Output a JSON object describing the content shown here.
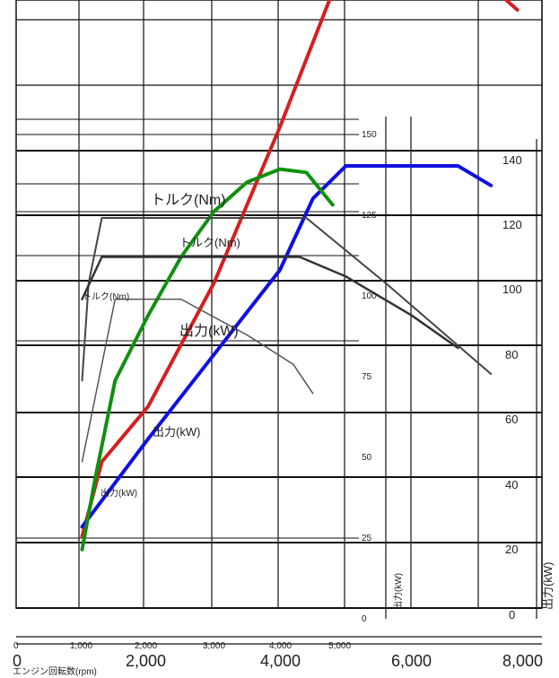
{
  "chart_data": {
    "type": "line",
    "title": "",
    "xlabel": "エンジン回転数(rpm)",
    "x_ticks_large": [
      "0",
      "2,000",
      "4,000",
      "6,000",
      "8,000"
    ],
    "x_ticks_small": [
      "0",
      "1,000",
      "2,000",
      "3,000",
      "4,000",
      "5,000"
    ],
    "y_ticks_right_kw": [
      "0",
      "20",
      "40",
      "60",
      "80",
      "100",
      "120",
      "140"
    ],
    "y_ticks_mid": [
      "0",
      "25",
      "50",
      "75",
      "100",
      "125",
      "150"
    ],
    "axis_label_kw": "出力(kW)",
    "labels": {
      "torque_big": "トルク(Nm)",
      "torque_mid": "トルク(Nm)",
      "torque_small": "トルク(Nm)",
      "power_big": "出力(kW)",
      "power_mid": "出力(kW)",
      "power_small": "出力(kW)"
    },
    "series": [
      {
        "color": "#d42020",
        "x": [
          1000,
          1300,
          2000,
          3000,
          4000,
          5000,
          6000,
          6700,
          7600
        ],
        "y": [
          22,
          45,
          62,
          100,
          148,
          200,
          200,
          200,
          184
        ]
      },
      {
        "color": "#1010e0",
        "x": [
          1000,
          2000,
          3000,
          4000,
          4500,
          5000,
          6000,
          6700,
          7200
        ],
        "y": [
          25,
          52,
          78,
          104,
          126,
          136,
          136,
          136,
          130
        ]
      },
      {
        "color": "#109010",
        "x": [
          1000,
          1200,
          1500,
          2000,
          2500,
          3000,
          3500,
          4000,
          4400,
          4800
        ],
        "y": [
          18,
          40,
          70,
          90,
          108,
          122,
          131,
          135,
          134,
          124
        ]
      },
      {
        "color": "#444444",
        "x": [
          1000,
          1100,
          1300,
          4400,
          5600,
          6400,
          7200
        ],
        "y": [
          70,
          100,
          120,
          120,
          100,
          86,
          72
        ]
      },
      {
        "color": "#333333",
        "x": [
          1000,
          1300,
          4300,
          5000,
          6000,
          6700
        ],
        "y": [
          95,
          108,
          108,
          102,
          90,
          80
        ]
      },
      {
        "color": "#555555",
        "x": [
          1000,
          1500,
          2500,
          3500,
          4200,
          4500
        ],
        "y": [
          45,
          95,
          95,
          84,
          75,
          66
        ]
      }
    ]
  }
}
